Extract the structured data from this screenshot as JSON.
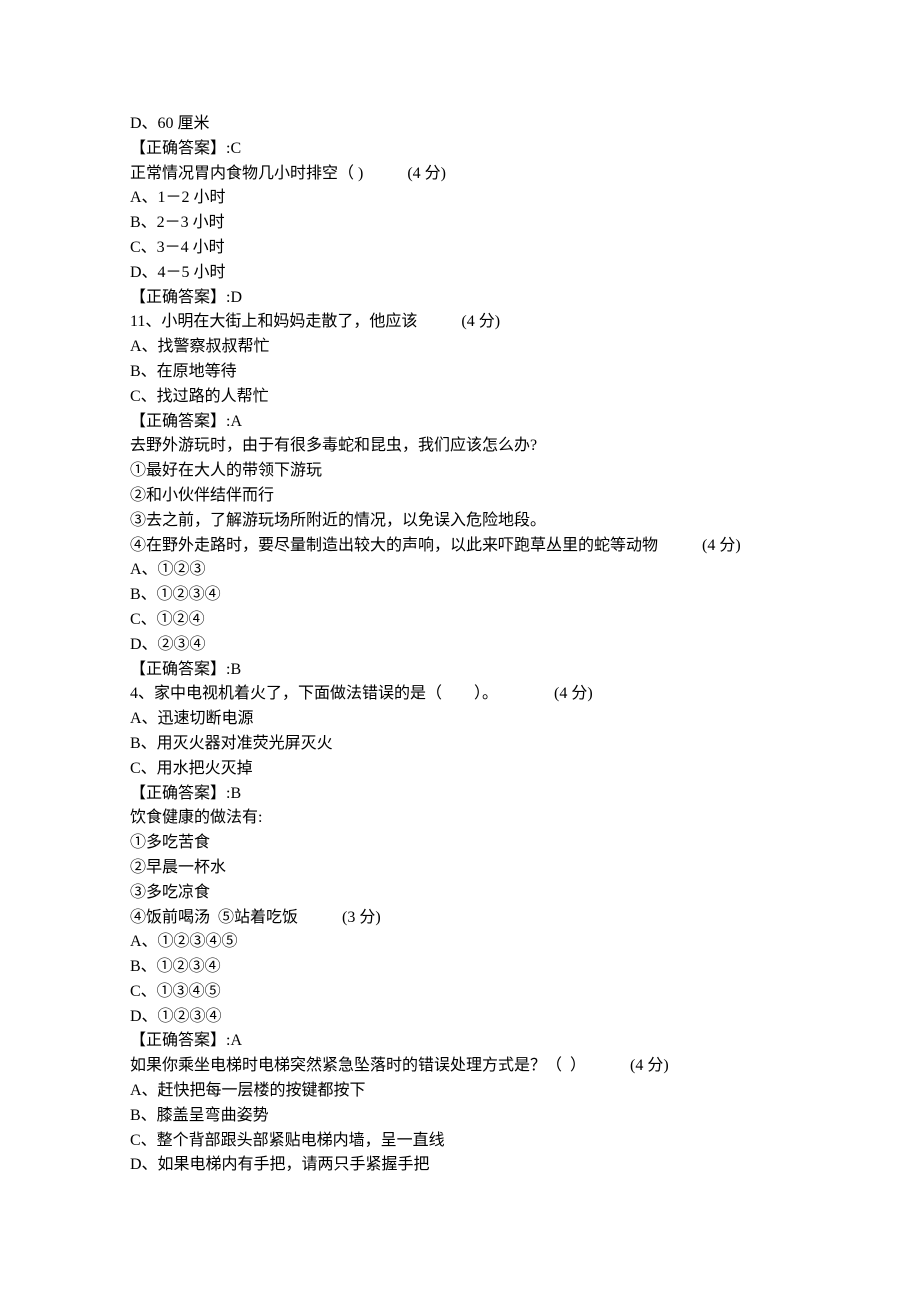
{
  "text_color": "#000000",
  "background_color": "#ffffff",
  "font_size_pt": 12,
  "lines": [
    {
      "t": "D、60 厘米",
      "gap": 0
    },
    {
      "t": "【正确答案】:C",
      "gap": 0
    },
    {
      "t": "正常情况胃内食物几小时排空（ )           (4 分)",
      "gap": 0
    },
    {
      "t": "A、1－2 小时",
      "gap": 0
    },
    {
      "t": "B、2－3 小时",
      "gap": 0
    },
    {
      "t": "C、3－4 小时",
      "gap": 0
    },
    {
      "t": "D、4－5 小时",
      "gap": 0
    },
    {
      "t": "【正确答案】:D",
      "gap": 0
    },
    {
      "t": "11、小明在大街上和妈妈走散了，他应该           (4 分)",
      "gap": 0
    },
    {
      "t": "A、找警察叔叔帮忙",
      "gap": 0
    },
    {
      "t": "B、在原地等待",
      "gap": 0
    },
    {
      "t": "C、找过路的人帮忙",
      "gap": 0
    },
    {
      "t": "【正确答案】:A",
      "gap": 0
    },
    {
      "t": "去野外游玩时，由于有很多毒蛇和昆虫，我们应该怎么办?",
      "gap": 0
    },
    {
      "t": "①最好在大人的带领下游玩",
      "gap": 0
    },
    {
      "t": "②和小伙伴结伴而行",
      "gap": 0
    },
    {
      "t": "③去之前，了解游玩场所附近的情况，以免误入危险地段。",
      "gap": 0
    },
    {
      "t": "④在野外走路时，要尽量制造出较大的声响，以此来吓跑草丛里的蛇等动物           (4 分)",
      "gap": 0
    },
    {
      "t": "A、①②③",
      "gap": 0
    },
    {
      "t": "B、①②③④",
      "gap": 0
    },
    {
      "t": "C、①②④",
      "gap": 0
    },
    {
      "t": "D、②③④",
      "gap": 0
    },
    {
      "t": "【正确答案】:B",
      "gap": 0
    },
    {
      "t": "4、家中电视机着火了，下面做法错误的是（　　）。              (4 分)",
      "gap": 0
    },
    {
      "t": "A、迅速切断电源",
      "gap": 0
    },
    {
      "t": "B、用灭火器对准荧光屏灭火",
      "gap": 0
    },
    {
      "t": "C、用水把火灭掉",
      "gap": 0
    },
    {
      "t": "【正确答案】:B",
      "gap": 0
    },
    {
      "t": "饮食健康的做法有:",
      "gap": 0
    },
    {
      "t": "①多吃苦食",
      "gap": 0
    },
    {
      "t": "②早晨一杯水",
      "gap": 0
    },
    {
      "t": "③多吃凉食",
      "gap": 0
    },
    {
      "t": "④饭前喝汤  ⑤站着吃饭           (3 分)",
      "gap": 0
    },
    {
      "t": "A、①②③④⑤",
      "gap": 0
    },
    {
      "t": "B、①②③④",
      "gap": 0
    },
    {
      "t": "C、①③④⑤",
      "gap": 0
    },
    {
      "t": "D、①②③④",
      "gap": 0
    },
    {
      "t": "【正确答案】:A",
      "gap": 0
    },
    {
      "t": "如果你乘坐电梯时电梯突然紧急坠落时的错误处理方式是？（  ）           (4 分)",
      "gap": 0
    },
    {
      "t": "A、赶快把每一层楼的按键都按下",
      "gap": 0
    },
    {
      "t": "B、膝盖呈弯曲姿势",
      "gap": 0
    },
    {
      "t": "C、整个背部跟头部紧贴电梯内墙，呈一直线",
      "gap": 0
    },
    {
      "t": "D、如果电梯内有手把，请两只手紧握手把",
      "gap": 0
    }
  ]
}
